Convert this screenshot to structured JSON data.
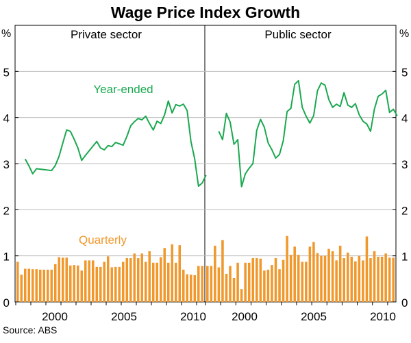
{
  "chart_data": {
    "type": "bar+line",
    "title": "Wage Price Index Growth",
    "source": "Source: ABS",
    "unit_label": "%",
    "ylim": [
      0,
      6
    ],
    "yticks": [
      0,
      1,
      2,
      3,
      4,
      5
    ],
    "x_tick_labels": [
      "2000",
      "2005",
      "2010"
    ],
    "colors": {
      "line": "#1aa84f",
      "bar": "#f0982c",
      "axis": "#000000"
    },
    "series_labels": {
      "line": "Year-ended",
      "bar": "Quarterly"
    },
    "panels": [
      {
        "name": "Private sector",
        "quarterly": [
          0.87,
          0.59,
          0.72,
          0.72,
          0.71,
          0.71,
          0.7,
          0.7,
          0.7,
          0.7,
          0.82,
          0.97,
          0.96,
          0.96,
          0.79,
          0.8,
          0.79,
          0.68,
          0.9,
          0.9,
          0.9,
          0.76,
          0.76,
          0.87,
          0.99,
          0.75,
          0.76,
          0.76,
          0.87,
          0.95,
          0.95,
          1.05,
          0.95,
          1.05,
          0.87,
          1.1,
          0.85,
          0.85,
          0.97,
          1.17,
          0.85,
          1.25,
          0.85,
          1.23,
          0.7,
          0.6,
          0.59,
          0.58,
          0.78,
          0.78
        ],
        "year_ended_start": 2,
        "year_ended": [
          3.1,
          2.95,
          2.78,
          2.89,
          2.88,
          2.87,
          2.86,
          2.85,
          2.96,
          3.16,
          3.45,
          3.73,
          3.7,
          3.53,
          3.34,
          3.07,
          3.18,
          3.28,
          3.38,
          3.48,
          3.34,
          3.3,
          3.39,
          3.37,
          3.46,
          3.43,
          3.4,
          3.59,
          3.82,
          3.91,
          3.98,
          3.95,
          4.03,
          3.87,
          3.73,
          3.92,
          3.87,
          4.06,
          4.36,
          4.1,
          4.28,
          4.25,
          4.29,
          4.15,
          3.48,
          3.1,
          2.51,
          2.58,
          2.75
        ]
      },
      {
        "name": "Public sector",
        "quarterly": [
          0.78,
          0.78,
          1.22,
          0.75,
          1.34,
          0.61,
          0.78,
          0.52,
          0.85,
          0.28,
          0.85,
          0.85,
          0.95,
          0.95,
          0.94,
          0.68,
          0.7,
          0.8,
          0.95,
          0.71,
          0.91,
          1.43,
          1.02,
          1.2,
          1.02,
          0.87,
          0.87,
          1.2,
          1.3,
          1.06,
          1.0,
          1.0,
          1.15,
          1.1,
          0.9,
          1.22,
          0.95,
          1.07,
          0.98,
          0.88,
          1.0,
          0.9,
          1.42,
          0.95,
          1.1,
          0.98,
          0.98,
          1.05,
          0.96,
          0.96
        ],
        "year_ended_start": 3,
        "year_ended": [
          3.7,
          3.52,
          4.09,
          3.9,
          3.42,
          3.52,
          2.5,
          2.78,
          2.9,
          3.0,
          3.72,
          3.96,
          3.79,
          3.45,
          3.3,
          3.12,
          3.2,
          3.5,
          4.13,
          4.2,
          4.72,
          4.8,
          4.22,
          4.03,
          3.88,
          4.04,
          4.58,
          4.75,
          4.7,
          4.39,
          4.22,
          4.29,
          4.24,
          4.54,
          4.27,
          4.22,
          4.3,
          4.06,
          3.92,
          3.86,
          3.7,
          4.18,
          4.46,
          4.51,
          4.59,
          4.11,
          4.18,
          4.04
        ]
      }
    ]
  }
}
